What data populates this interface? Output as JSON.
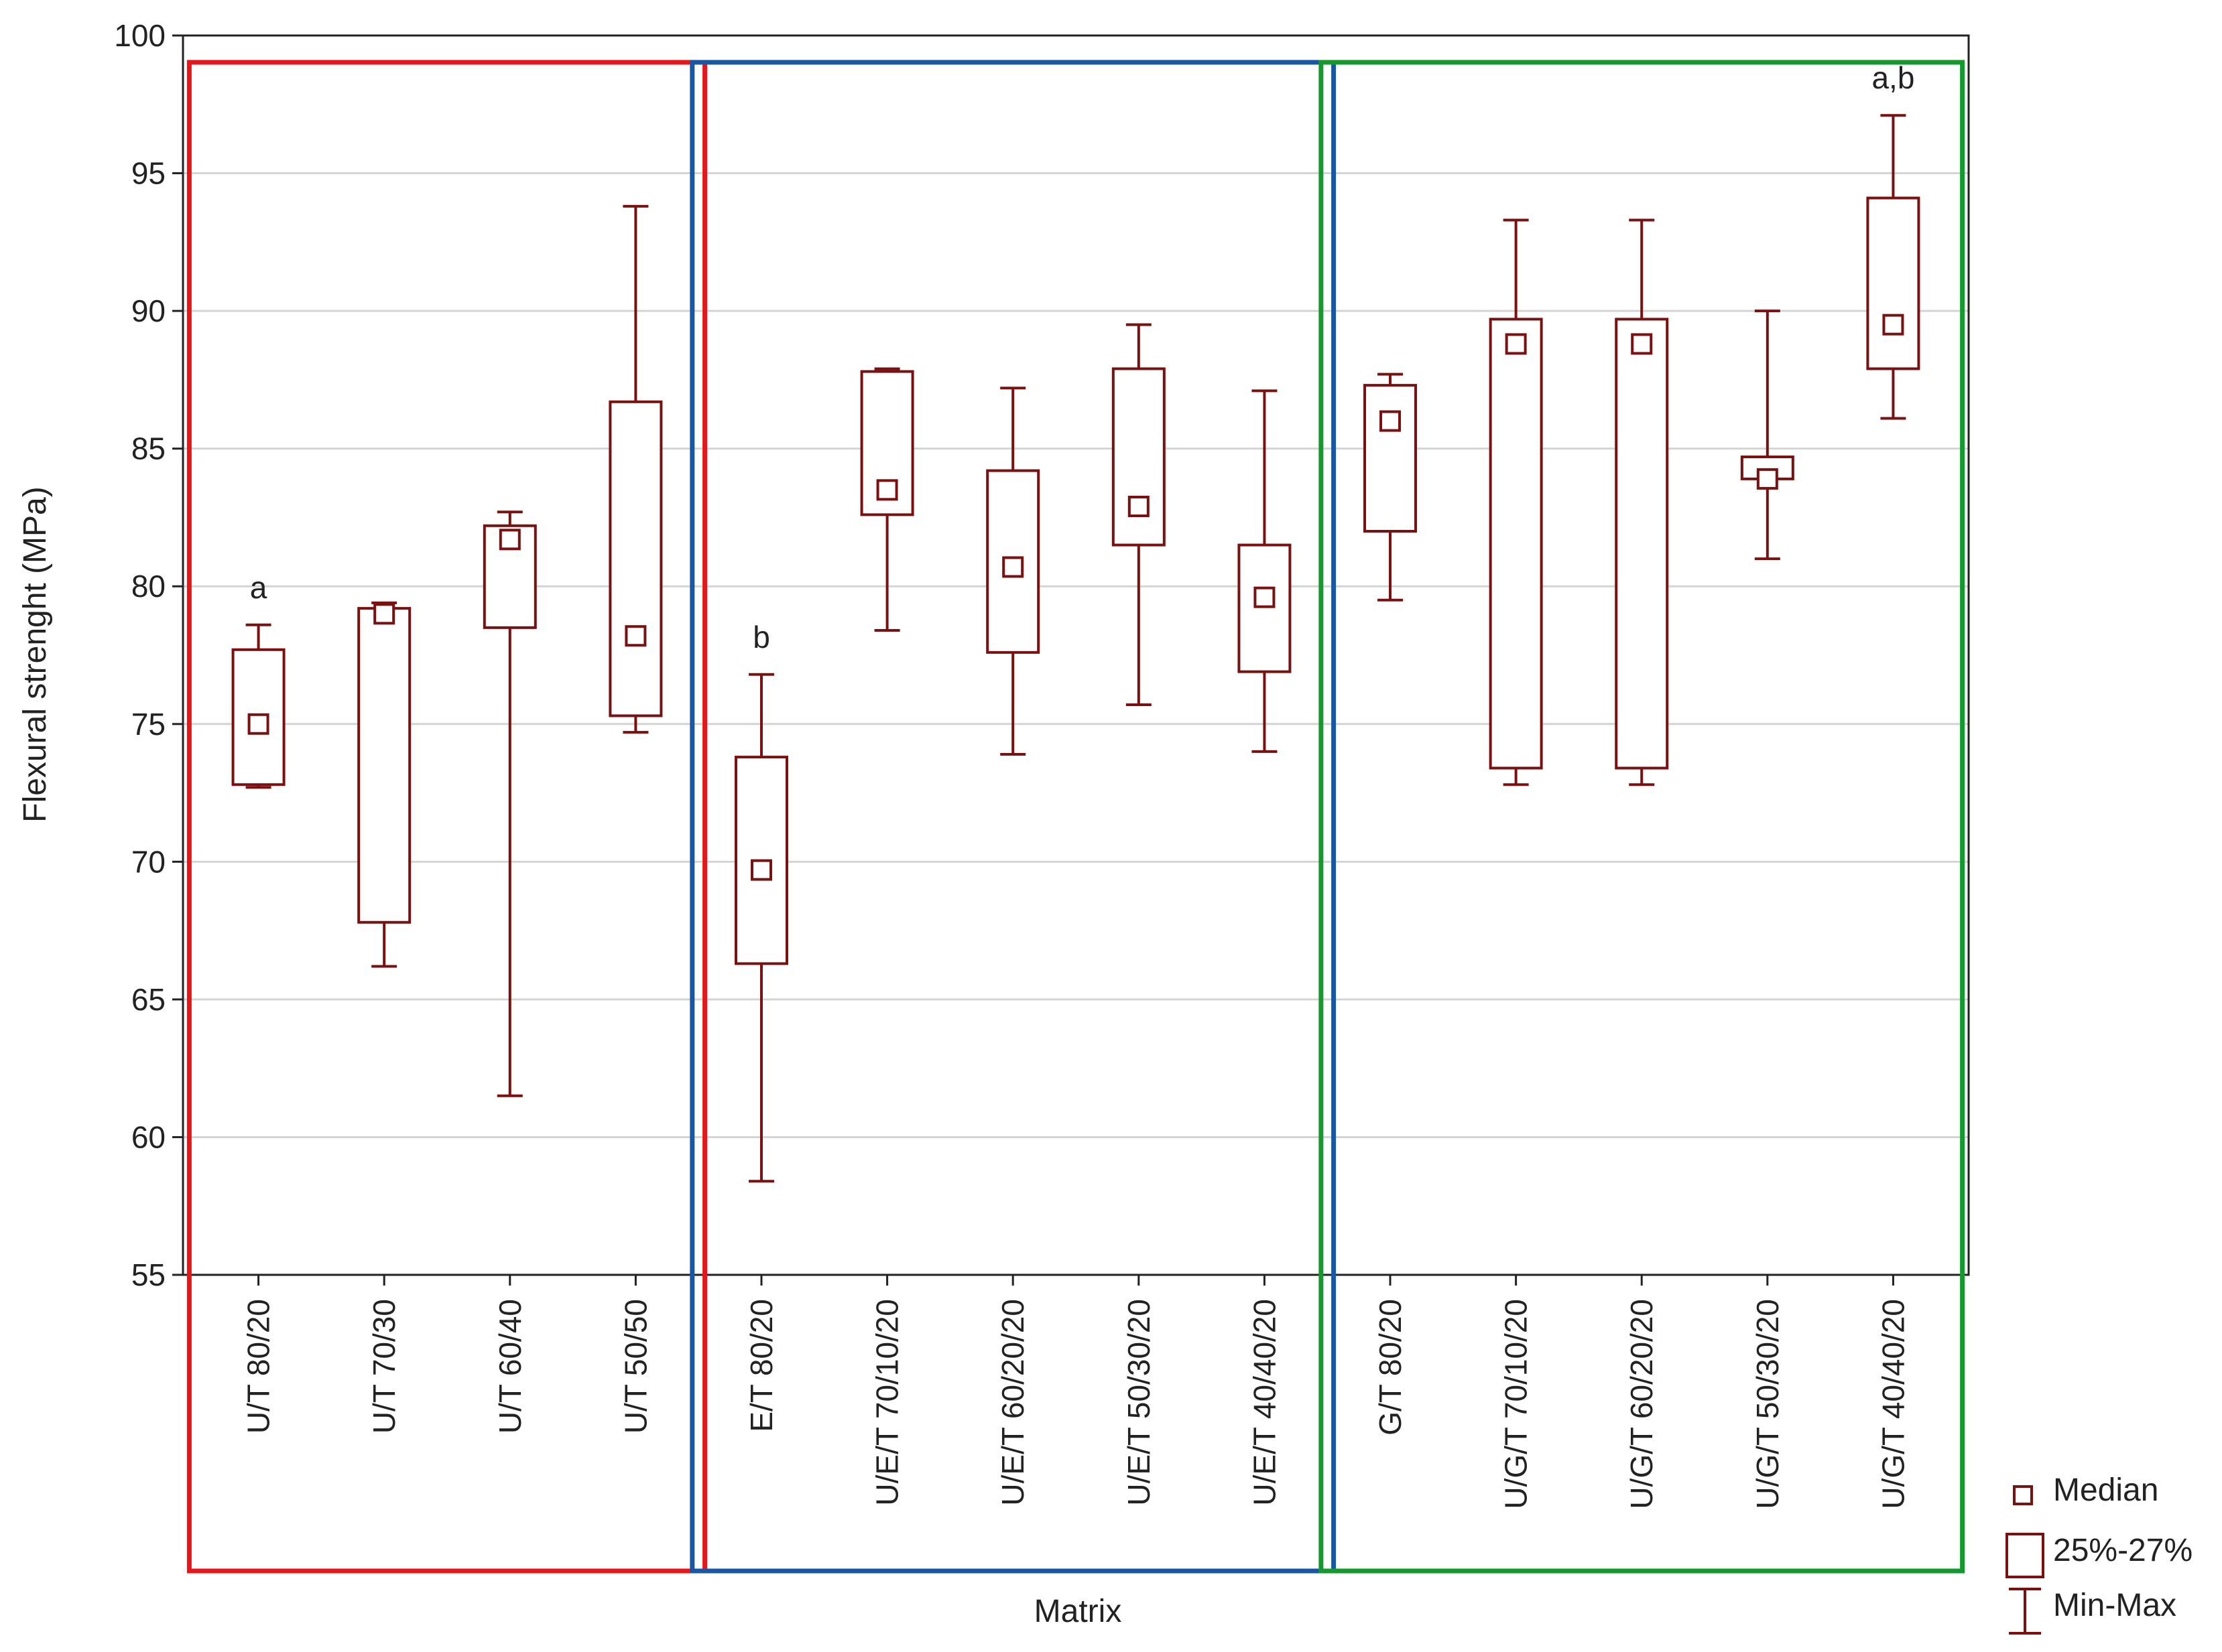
{
  "chart_data": {
    "type": "boxplot",
    "title": "",
    "xlabel": "Matrix",
    "ylabel": "Flexural strenght (MPa)",
    "ylim": [
      55,
      100
    ],
    "yticks": [
      55,
      60,
      65,
      70,
      75,
      80,
      85,
      90,
      95,
      100
    ],
    "grid": true,
    "categories": [
      "U/T 80/20",
      "U/T 70/30",
      "U/T 60/40",
      "U/T 50/50",
      "E/T 80/20",
      "U/E/T 70/10/20",
      "U/E/T 60/20/20",
      "U/E/T 50/30/20",
      "U/E/T 40/40/20",
      "G/T 80/20",
      "U/G/T 70/10/20",
      "U/G/T 60/20/20",
      "U/G/T 50/30/20",
      "U/G/T 40/40/20"
    ],
    "boxes": [
      {
        "min": 72.7,
        "q1": 72.8,
        "median": 75.0,
        "q3": 77.7,
        "max": 78.6
      },
      {
        "min": 66.2,
        "q1": 67.8,
        "median": 79.0,
        "q3": 79.2,
        "max": 79.4
      },
      {
        "min": 61.5,
        "q1": 78.5,
        "median": 81.7,
        "q3": 82.2,
        "max": 82.7
      },
      {
        "min": 74.7,
        "q1": 75.3,
        "median": 78.2,
        "q3": 86.7,
        "max": 93.8
      },
      {
        "min": 58.4,
        "q1": 66.3,
        "median": 69.7,
        "q3": 73.8,
        "max": 76.8
      },
      {
        "min": 78.4,
        "q1": 82.6,
        "median": 83.5,
        "q3": 87.8,
        "max": 87.9
      },
      {
        "min": 73.9,
        "q1": 77.6,
        "median": 80.7,
        "q3": 84.2,
        "max": 87.2
      },
      {
        "min": 75.7,
        "q1": 81.5,
        "median": 82.9,
        "q3": 87.9,
        "max": 89.5
      },
      {
        "min": 74.0,
        "q1": 76.9,
        "median": 79.6,
        "q3": 81.5,
        "max": 87.1
      },
      {
        "min": 79.5,
        "q1": 82.0,
        "median": 86.0,
        "q3": 87.3,
        "max": 87.7
      },
      {
        "min": 72.8,
        "q1": 73.4,
        "median": 88.8,
        "q3": 89.7,
        "max": 93.3
      },
      {
        "min": 72.8,
        "q1": 73.4,
        "median": 88.8,
        "q3": 89.7,
        "max": 93.3
      },
      {
        "min": 81.0,
        "q1": 83.9,
        "median": 83.9,
        "q3": 84.7,
        "max": 90.0
      },
      {
        "min": 86.1,
        "q1": 87.9,
        "median": 89.5,
        "q3": 94.1,
        "max": 97.1
      }
    ],
    "annotations": [
      {
        "category": 0,
        "text": "a"
      },
      {
        "category": 4,
        "text": "b"
      },
      {
        "category": 13,
        "text": "a,b"
      }
    ],
    "groups": [
      {
        "name": "red-group",
        "color": "#e8161b",
        "first": 0,
        "last": 3
      },
      {
        "name": "blue-group",
        "color": "#1757a6",
        "first": 4,
        "last": 8
      },
      {
        "name": "green-group",
        "color": "#149a2c",
        "first": 9,
        "last": 13
      }
    ],
    "legend": {
      "position": "bottom-right",
      "items": [
        "Median",
        "25%-27%",
        "Min-Max"
      ]
    },
    "colors": {
      "box": "#7a1010",
      "grid": "#d4d4d4",
      "frame": "#222222"
    }
  }
}
